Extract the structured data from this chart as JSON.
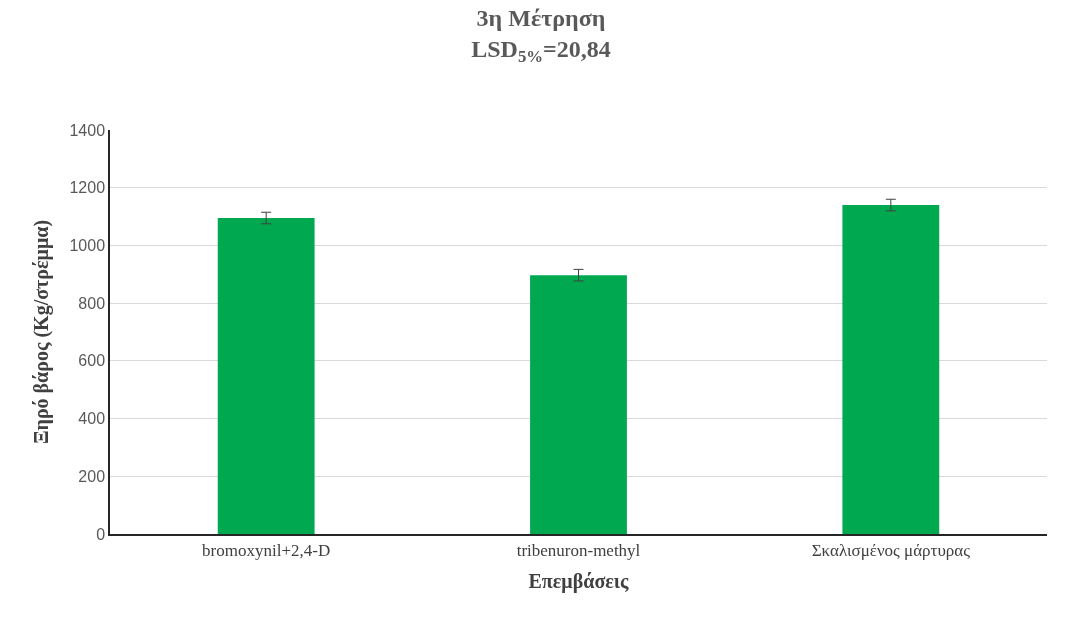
{
  "chart_data": {
    "type": "bar",
    "title": "3η Μέτρηση",
    "subtitle": "LSD$_{5%}$=20,84",
    "xlabel": "Επεμβάσεις",
    "ylabel": "Ξηρό βάρος (Kg/στρέμμα)",
    "categories": [
      "bromoxynil+2,4-D",
      "tribenuron-methyl",
      "Σκαλισμένος μάρτυρας"
    ],
    "values": [
      1095,
      897,
      1140
    ],
    "errors": [
      20,
      20,
      20
    ],
    "color": "#00a84f",
    "ylim": [
      0,
      1400
    ],
    "yticks": [
      0,
      200,
      400,
      600,
      800,
      1000,
      1200,
      1400
    ],
    "grid": "y"
  }
}
